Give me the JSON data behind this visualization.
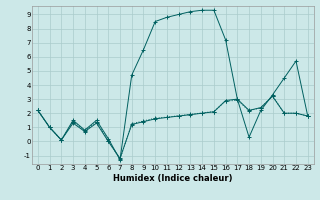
{
  "xlabel": "Humidex (Indice chaleur)",
  "background_color": "#cce8e8",
  "grid_color": "#aacccc",
  "line_color": "#006060",
  "xlim": [
    -0.5,
    23.5
  ],
  "ylim": [
    -1.6,
    9.6
  ],
  "xticks": [
    0,
    1,
    2,
    3,
    4,
    5,
    6,
    7,
    8,
    9,
    10,
    11,
    12,
    13,
    14,
    15,
    16,
    17,
    18,
    19,
    20,
    21,
    22,
    23
  ],
  "yticks": [
    -1,
    0,
    1,
    2,
    3,
    4,
    5,
    6,
    7,
    8,
    9
  ],
  "line1_y": [
    2.2,
    1.0,
    0.1,
    1.5,
    0.8,
    1.5,
    0.2,
    -1.3,
    4.7,
    6.5,
    8.5,
    8.8,
    9.0,
    9.2,
    9.3,
    9.3,
    7.2,
    3.0,
    0.3,
    2.2,
    3.3,
    4.5,
    5.7,
    1.8
  ],
  "line2_y": [
    2.2,
    1.0,
    0.1,
    1.3,
    0.7,
    1.3,
    0.0,
    -1.2,
    1.2,
    1.4,
    1.6,
    1.7,
    1.8,
    1.9,
    2.0,
    2.1,
    2.9,
    3.0,
    2.2,
    2.4,
    3.2,
    2.0,
    2.0,
    1.8
  ],
  "line3_y": [
    2.2,
    1.0,
    0.1,
    1.4,
    0.75,
    1.4,
    0.05,
    -1.25,
    1.25,
    1.45,
    1.65,
    1.72,
    1.82,
    1.92,
    2.02,
    2.12,
    2.85,
    2.92,
    2.18,
    2.38,
    3.22,
    2.0,
    2.0,
    1.8
  ],
  "tick_fontsize": 5,
  "xlabel_fontsize": 6
}
